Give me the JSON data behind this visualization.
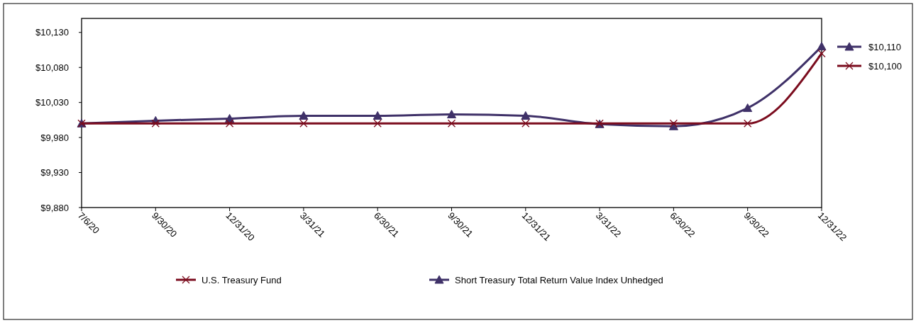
{
  "chart_data": {
    "type": "line",
    "categories": [
      "7/6/20",
      "9/30/20",
      "12/31/20",
      "3/31/21",
      "6/30/21",
      "9/30/21",
      "12/31/21",
      "3/31/22",
      "6/30/22",
      "9/30/22",
      "12/31/22"
    ],
    "ylim": [
      9880,
      10150
    ],
    "yticks": [
      {
        "value": 9880,
        "label": "$9,880"
      },
      {
        "value": 9930,
        "label": "$9,930"
      },
      {
        "value": 9980,
        "label": "$9,980"
      },
      {
        "value": 10030,
        "label": "$10,030"
      },
      {
        "value": 10080,
        "label": "$10,080"
      },
      {
        "value": 10130,
        "label": "$10,130"
      }
    ],
    "legend": "bottom",
    "grid": false,
    "annotations": [
      "$10,110",
      "$10,100"
    ],
    "series": [
      {
        "name": "U.S. Treasury Fund",
        "color": "#7b0c1e",
        "marker": "cross",
        "values": [
          10000,
          10000,
          10000,
          10000,
          10000,
          10000,
          10000,
          10000,
          10000,
          10000,
          10100
        ]
      },
      {
        "name": "Short Treasury Total Return Value Index Unhedged",
        "color": "#3f3168",
        "marker": "triangle",
        "values": [
          10000,
          10004,
          10007,
          10011,
          10011,
          10013,
          10011,
          9999,
          9996,
          10022,
          10110
        ]
      }
    ]
  }
}
